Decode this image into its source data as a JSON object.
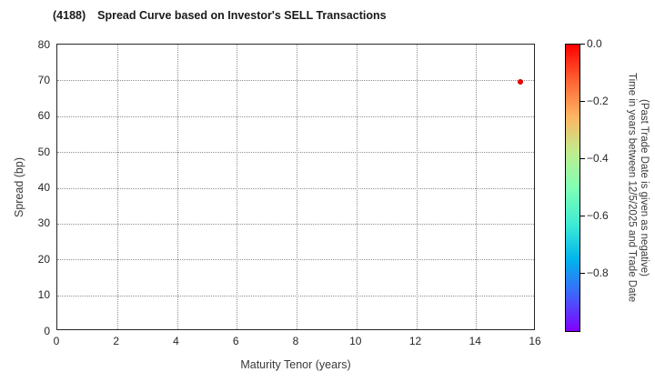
{
  "figure": {
    "ticker": "(4188)",
    "title_text": "Spread Curve based on Investor's SELL Transactions"
  },
  "chart_data": {
    "type": "scatter",
    "title": "(4188)  Spread Curve based on Investor's SELL Transactions",
    "xlabel": "Maturity Tenor (years)",
    "ylabel": "Spread (bp)",
    "xlim": [
      0,
      16
    ],
    "ylim": [
      0,
      80
    ],
    "xticks": [
      0,
      2,
      4,
      6,
      8,
      10,
      12,
      14,
      16
    ],
    "yticks": [
      0,
      10,
      20,
      30,
      40,
      50,
      60,
      70,
      80
    ],
    "grid": true,
    "grid_style": "dotted",
    "points": [
      {
        "x": 15.5,
        "y": 69.5,
        "color_value": 0.0,
        "color": "#f40000"
      }
    ],
    "colorbar": {
      "label_line1": "Time in years between 12/5/2025 and Trade Date",
      "label_line2": "(Past Trade Date is given as negative)",
      "range": [
        0.0,
        -1.0
      ],
      "ticks": [
        0.0,
        -0.2,
        -0.4,
        -0.6,
        -0.8
      ],
      "tick_labels": [
        "0.0",
        "−0.2",
        "−0.4",
        "−0.6",
        "−0.8"
      ],
      "colormap": "rainbow",
      "gradient_stops": [
        {
          "pos": 0,
          "color": "#ff0000"
        },
        {
          "pos": 12.5,
          "color": "#ff6232"
        },
        {
          "pos": 25,
          "color": "#ffb462"
        },
        {
          "pos": 37.5,
          "color": "#bfec8e"
        },
        {
          "pos": 50,
          "color": "#80ffb4"
        },
        {
          "pos": 62.5,
          "color": "#40ecd4"
        },
        {
          "pos": 75,
          "color": "#00b4ec"
        },
        {
          "pos": 87.5,
          "color": "#4062fa"
        },
        {
          "pos": 100,
          "color": "#8000ff"
        }
      ]
    }
  }
}
